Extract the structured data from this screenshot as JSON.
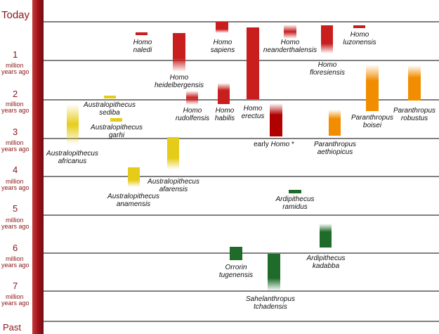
{
  "axis": {
    "top_label": "Today",
    "bottom_label": "Past",
    "unit_line1": "million",
    "unit_line2": "years ago",
    "ticks": [
      "1",
      "2",
      "3",
      "4",
      "5",
      "6",
      "7"
    ]
  },
  "colors": {
    "axis_bar": "#a3141c",
    "homo": "#c81e1e",
    "homo_dark": "#b00000",
    "paranthropus": "#f28c00",
    "australopithecus": "#e6cc1a",
    "ardipithecus": "#1e6b2a",
    "line": "#000000"
  },
  "species": [
    {
      "id": "homo-naledi",
      "line1": "Homo",
      "line2": "naledi",
      "color": "homo"
    },
    {
      "id": "homo-sapiens",
      "line1": "Homo",
      "line2": "sapiens",
      "color": "homo"
    },
    {
      "id": "homo-neanderthalensis",
      "line1": "Homo",
      "line2": "neanderthalensis",
      "color": "homo"
    },
    {
      "id": "homo-luzonensis",
      "line1": "Homo",
      "line2": "luzonensis",
      "color": "homo"
    },
    {
      "id": "homo-heidelbergensis",
      "line1": "Homo",
      "line2": "heidelbergensis",
      "color": "homo"
    },
    {
      "id": "homo-floresiensis",
      "line1": "Homo",
      "line2": "floresiensis",
      "color": "homo"
    },
    {
      "id": "homo-erectus",
      "line1": "Homo",
      "line2": "erectus",
      "color": "homo"
    },
    {
      "id": "homo-rudolfensis",
      "line1": "Homo",
      "line2": "rudolfensis",
      "color": "homo"
    },
    {
      "id": "homo-habilis",
      "line1": "Homo",
      "line2": "habilis",
      "color": "homo"
    },
    {
      "id": "early-homo",
      "line1": "early ",
      "line1b": "Homo",
      "line1c": " *",
      "color": "homo_dark"
    },
    {
      "id": "paranthropus-boisei",
      "line1": "Paranthropus",
      "line2": "boisei",
      "color": "paranthropus"
    },
    {
      "id": "paranthropus-robustus",
      "line1": "Paranthropus",
      "line2": "robustus",
      "color": "paranthropus"
    },
    {
      "id": "paranthropus-aethiopicus",
      "line1": "Paranthropus",
      "line2": "aethiopicus",
      "color": "paranthropus"
    },
    {
      "id": "australopithecus-sediba",
      "line1": "Australopithecus",
      "line2": "sediba",
      "color": "australopithecus"
    },
    {
      "id": "australopithecus-garhi",
      "line1": "Australopithecus",
      "line2": "garhi",
      "color": "australopithecus"
    },
    {
      "id": "australopithecus-africanus",
      "line1": "Australopithecus",
      "line2": "africanus",
      "color": "australopithecus"
    },
    {
      "id": "australopithecus-afarensis",
      "line1": "Australopithecus",
      "line2": "afarensis",
      "color": "australopithecus"
    },
    {
      "id": "australopithecus-anamensis",
      "line1": "Australopithecus",
      "line2": "anamensis",
      "color": "australopithecus"
    },
    {
      "id": "ardipithecus-ramidus",
      "line1": "Ardipithecus",
      "line2": "ramidus",
      "color": "ardipithecus"
    },
    {
      "id": "ardipithecus-kadabba",
      "line1": "Ardipithecus",
      "line2": "kadabba",
      "color": "ardipithecus"
    },
    {
      "id": "orrorin-tugenensis",
      "line1": "Orrorin",
      "line2": "tugenensis",
      "color": "ardipithecus"
    },
    {
      "id": "sahelanthropus-tchadensis",
      "line1": "Sahelanthropus",
      "line2": "tchadensis",
      "color": "ardipithecus"
    }
  ]
}
